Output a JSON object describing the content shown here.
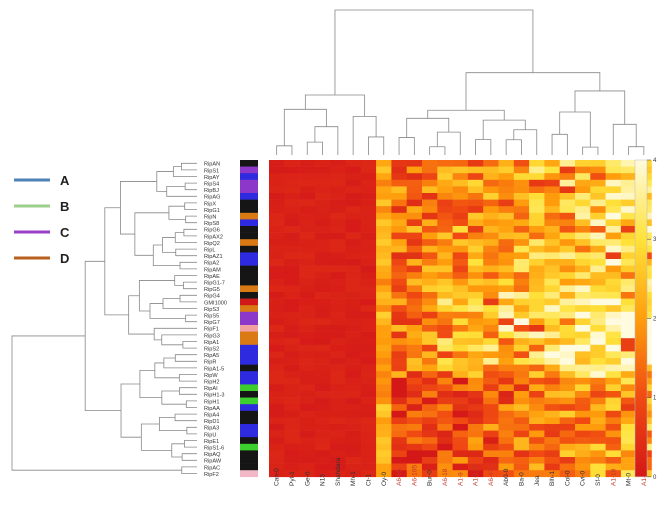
{
  "chart_data": {
    "type": "heatmap",
    "title": "",
    "xlabel": "",
    "ylabel": "",
    "columns": [
      "Can-0",
      "Pyl-1",
      "Ge-0",
      "N13",
      "Shahdara",
      "Mh-1",
      "Ct-1",
      "Oy-0",
      "A6-65",
      "A6-105",
      "Bur-0",
      "A6-18",
      "A1-9",
      "A1-137",
      "A6-47",
      "Ab0-0",
      "Ba-0",
      "Jea",
      "Blh-1",
      "Col-0",
      "Cvi-0",
      "Sf-0",
      "A1-18",
      "Mt-0",
      "A1-19"
    ],
    "highlighted_columns": [
      "A6-65",
      "A6-105",
      "A6-18",
      "A1-9",
      "A1-137",
      "A6-47",
      "A1-18",
      "A1-19"
    ],
    "highlight_color": "#c0392b",
    "rows": [
      "RipAN",
      "RipS1",
      "RipAY",
      "RipS4",
      "RipBJ",
      "RipAG",
      "RipX",
      "RipG1",
      "RipN",
      "RipS8",
      "RipG6",
      "RipAX2",
      "RipQ2",
      "RipL",
      "RipAZ1",
      "RipA2",
      "RipAM",
      "RipAE",
      "RipG1-7",
      "RipG5",
      "RipG4",
      "GMI1000",
      "RipS3",
      "RipS5",
      "RipG7",
      "RipF1",
      "RipG3",
      "RipA1",
      "RipS2",
      "RipA5",
      "RipR",
      "RipA1-5",
      "RipW",
      "RipH2",
      "RipAI",
      "RipH1-3",
      "RipH1",
      "RipAA",
      "RipA4",
      "RipD1",
      "RipA3",
      "RipU",
      "RipE1",
      "RipS1-6",
      "RipAQ",
      "RipAW",
      "RipAC",
      "RipF2"
    ],
    "group_colors": [
      "#151515",
      "#8c37c9",
      "#2d2ae0",
      "#8c37c9",
      "#8c37c9",
      "#2d2ae0",
      "#151515",
      "#151515",
      "#d97a14",
      "#2d2ae0",
      "#151515",
      "#151515",
      "#d97a14",
      "#151515",
      "#2d2ae0",
      "#2d2ae0",
      "#151515",
      "#151515",
      "#151515",
      "#d97a14",
      "#151515",
      "#d01a1a",
      "#d97a14",
      "#8c37c9",
      "#8c37c9",
      "#f2a0a0",
      "#d97a14",
      "#d97a14",
      "#2d2ae0",
      "#2d2ae0",
      "#2d2ae0",
      "#151515",
      "#2d2ae0",
      "#2d2ae0",
      "#3ccf2e",
      "#151515",
      "#3ccf2e",
      "#2d2ae0",
      "#151515",
      "#151515",
      "#2d2ae0",
      "#2d2ae0",
      "#151515",
      "#3ccf2e",
      "#151515",
      "#151515",
      "#151515",
      "#f2b8c8"
    ],
    "legend": [
      {
        "label": "A",
        "color": "#4f83b8"
      },
      {
        "label": "B",
        "color": "#9ccf8a"
      },
      {
        "label": "C",
        "color": "#9b3fc9"
      },
      {
        "label": "D",
        "color": "#b8611c"
      }
    ],
    "colorbar": {
      "min": 0,
      "max": 4,
      "ticks": [
        "0",
        "1",
        "2",
        "3",
        "4"
      ],
      "colors": [
        "#d41818",
        "#f04a12",
        "#ff9e0c",
        "#ffe23a",
        "#fffbe0"
      ]
    }
  }
}
